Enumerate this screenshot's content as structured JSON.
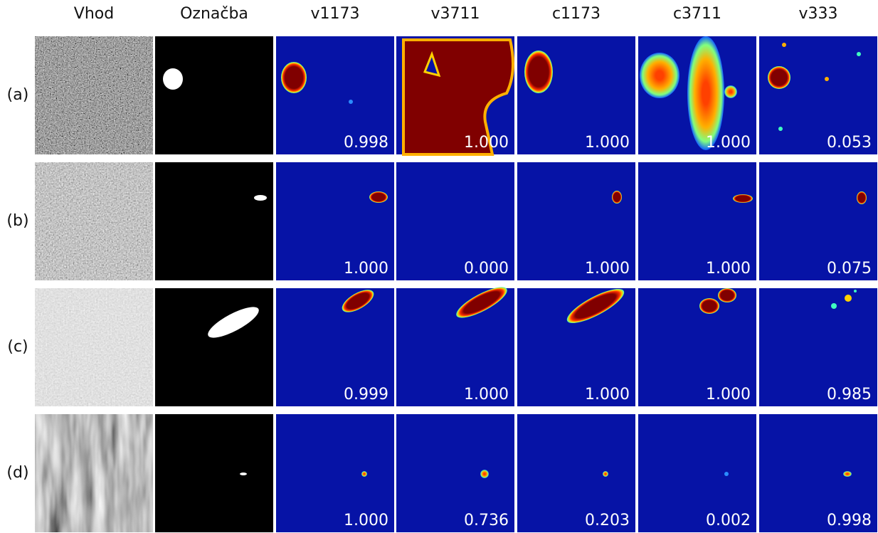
{
  "columns": [
    "Vhod",
    "Označba",
    "v1173",
    "v3711",
    "c1173",
    "c3711",
    "v333"
  ],
  "rows": [
    {
      "label": "(a)",
      "scores": [
        "0.998",
        "1.000",
        "1.000",
        "1.000",
        "0.053"
      ]
    },
    {
      "label": "(b)",
      "scores": [
        "1.000",
        "0.000",
        "1.000",
        "1.000",
        "0.075"
      ]
    },
    {
      "label": "(c)",
      "scores": [
        "0.999",
        "1.000",
        "1.000",
        "1.000",
        "0.985"
      ]
    },
    {
      "label": "(d)",
      "scores": [
        "1.000",
        "0.736",
        "0.203",
        "0.002",
        "0.998"
      ]
    }
  ]
}
